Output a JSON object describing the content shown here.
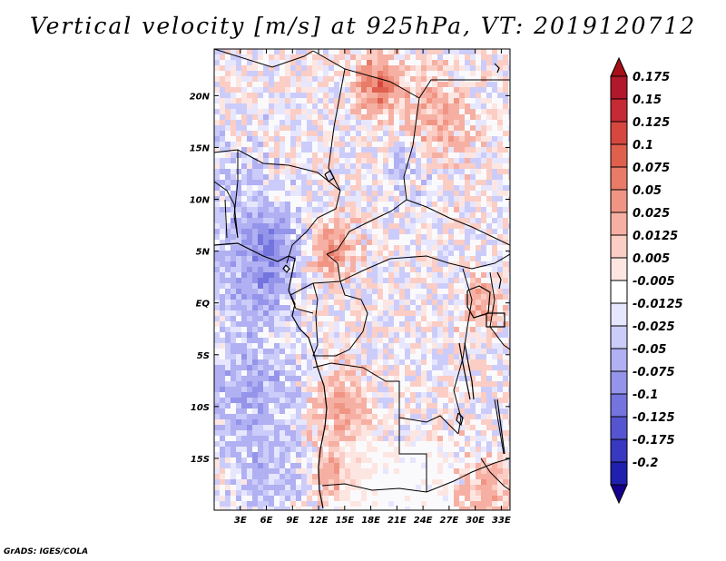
{
  "title": "Vertical velocity [m/s] at 925hPa, VT: 2019120712",
  "footer": "GrADS: IGES/COLA",
  "map": {
    "region": "Central Africa",
    "lon_range": [
      0,
      34
    ],
    "lat_range": [
      -20,
      24.5
    ],
    "lon_ticks": [
      {
        "value": 3,
        "label": "3E"
      },
      {
        "value": 6,
        "label": "6E"
      },
      {
        "value": 9,
        "label": "9E"
      },
      {
        "value": 12,
        "label": "12E"
      },
      {
        "value": 15,
        "label": "15E"
      },
      {
        "value": 18,
        "label": "18E"
      },
      {
        "value": 21,
        "label": "21E"
      },
      {
        "value": 24,
        "label": "24E"
      },
      {
        "value": 27,
        "label": "27E"
      },
      {
        "value": 30,
        "label": "30E"
      },
      {
        "value": 33,
        "label": "33E"
      }
    ],
    "lat_ticks": [
      {
        "value": 20,
        "label": "20N"
      },
      {
        "value": 15,
        "label": "15N"
      },
      {
        "value": 10,
        "label": "10N"
      },
      {
        "value": 5,
        "label": "5N"
      },
      {
        "value": 0,
        "label": "EQ"
      },
      {
        "value": -5,
        "label": "5S"
      },
      {
        "value": -10,
        "label": "10S"
      },
      {
        "value": -15,
        "label": "15S"
      }
    ]
  },
  "colorbar": {
    "levels": [
      {
        "label": "0.175",
        "color": "#b2182b"
      },
      {
        "label": "0.15",
        "color": "#c62a34"
      },
      {
        "label": "0.125",
        "color": "#d6473f"
      },
      {
        "label": "0.1",
        "color": "#e0604e"
      },
      {
        "label": "0.075",
        "color": "#e87c68"
      },
      {
        "label": "0.05",
        "color": "#f09584"
      },
      {
        "label": "0.025",
        "color": "#f6b0a3"
      },
      {
        "label": "0.0125",
        "color": "#fbcdc4"
      },
      {
        "label": "0.005",
        "color": "#fde6e2"
      },
      {
        "label": "-0.005",
        "color": "#ffffff"
      },
      {
        "label": "-0.0125",
        "color": "#e6e6ff"
      },
      {
        "label": "-0.025",
        "color": "#ccccfa"
      },
      {
        "label": "-0.05",
        "color": "#b0b0f2"
      },
      {
        "label": "-0.075",
        "color": "#9494ea"
      },
      {
        "label": "-0.1",
        "color": "#7474de"
      },
      {
        "label": "-0.125",
        "color": "#5555d2"
      },
      {
        "label": "-0.175",
        "color": "#3838c0"
      },
      {
        "label": "-0.2",
        "color": "#2020ae"
      }
    ],
    "top_arrow_color": "#a50f15",
    "bottom_arrow_color": "#14008c"
  },
  "chart_data": {
    "type": "heatmap",
    "title": "Vertical velocity [m/s] at 925hPa, VT: 2019120712",
    "variable": "Vertical velocity",
    "units": "m/s",
    "level": "925hPa",
    "valid_time": "2019120712",
    "x": {
      "name": "longitude",
      "range": [
        0,
        34
      ],
      "ticks": [
        "3E",
        "6E",
        "9E",
        "12E",
        "15E",
        "18E",
        "21E",
        "24E",
        "27E",
        "30E",
        "33E"
      ]
    },
    "y": {
      "name": "latitude",
      "range": [
        -20,
        24.5
      ],
      "ticks": [
        "20N",
        "15N",
        "10N",
        "5N",
        "EQ",
        "5S",
        "10S",
        "15S"
      ]
    },
    "color_levels": [
      -0.2,
      -0.175,
      -0.125,
      -0.1,
      -0.075,
      -0.05,
      -0.025,
      -0.0125,
      -0.005,
      0.005,
      0.0125,
      0.025,
      0.05,
      0.075,
      0.1,
      0.125,
      0.15,
      0.175
    ]
  }
}
